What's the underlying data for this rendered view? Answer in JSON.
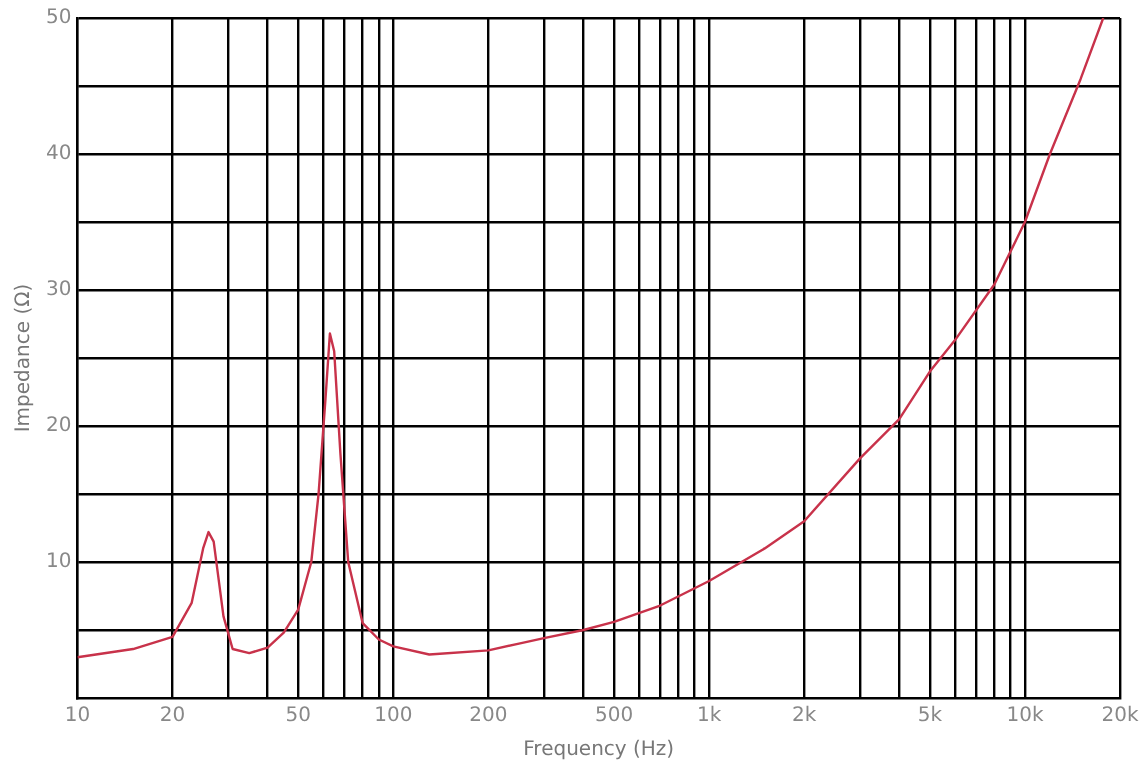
{
  "chart_data": {
    "type": "line",
    "xlabel": "Frequency (Hz)",
    "ylabel": "Impedance (Ω)",
    "log": "x",
    "grid": true,
    "legend": false,
    "marker": "none",
    "line_style": "solid",
    "xlim": [
      10,
      20000
    ],
    "xticks": [
      10,
      20,
      {
        "value": 30,
        "label": null
      },
      {
        "value": 40,
        "label": null
      },
      50,
      {
        "value": 60,
        "label": null
      },
      {
        "value": 70,
        "label": null
      },
      {
        "value": 80,
        "label": null
      },
      {
        "value": 90,
        "label": null
      },
      100,
      200,
      {
        "value": 300,
        "label": null
      },
      {
        "value": 400,
        "label": null
      },
      500,
      {
        "value": 600,
        "label": null
      },
      {
        "value": 700,
        "label": null
      },
      {
        "value": 800,
        "label": null
      },
      {
        "value": 900,
        "label": null
      },
      {
        "value": 1000,
        "label": "1k"
      },
      {
        "value": 2000,
        "label": "2k"
      },
      {
        "value": 3000,
        "label": null
      },
      {
        "value": 4000,
        "label": null
      },
      {
        "value": 5000,
        "label": "5k"
      },
      {
        "value": 6000,
        "label": null
      },
      {
        "value": 7000,
        "label": null
      },
      {
        "value": 8000,
        "label": null
      },
      {
        "value": 9000,
        "label": null
      },
      {
        "value": 10000,
        "label": "10k"
      },
      {
        "value": 20000,
        "label": "20k"
      }
    ],
    "ylim": [
      0,
      50
    ],
    "yticks": [
      {
        "value": 5,
        "label": null
      },
      10,
      {
        "value": 15,
        "label": null
      },
      20,
      {
        "value": 25,
        "label": null
      },
      30,
      {
        "value": 35,
        "label": null
      },
      40,
      {
        "value": 45,
        "label": null
      },
      50
    ],
    "x": [
      10,
      15,
      20,
      23,
      25,
      26,
      27,
      29,
      31,
      35,
      40,
      45,
      50,
      55,
      58,
      61,
      63,
      65,
      68,
      72,
      80,
      90,
      100,
      130,
      200,
      250,
      300,
      400,
      500,
      700,
      1000,
      1500,
      2000,
      3000,
      4000,
      5000,
      6000,
      8000,
      10000,
      12000,
      15000,
      17700
    ],
    "series": [
      {
        "color": "#c8324a",
        "values": [
          3.0,
          3.6,
          4.5,
          7,
          11,
          12.2,
          11.5,
          6,
          3.6,
          3.3,
          3.7,
          4.8,
          6.5,
          10,
          15,
          22,
          26.8,
          25.5,
          18,
          10,
          5.5,
          4.3,
          3.8,
          3.2,
          3.5,
          4,
          4.4,
          5,
          5.6,
          6.8,
          8.6,
          11,
          13,
          17.6,
          20.5,
          24,
          26.3,
          30.4,
          35,
          40,
          45.5,
          50
        ]
      }
    ]
  }
}
